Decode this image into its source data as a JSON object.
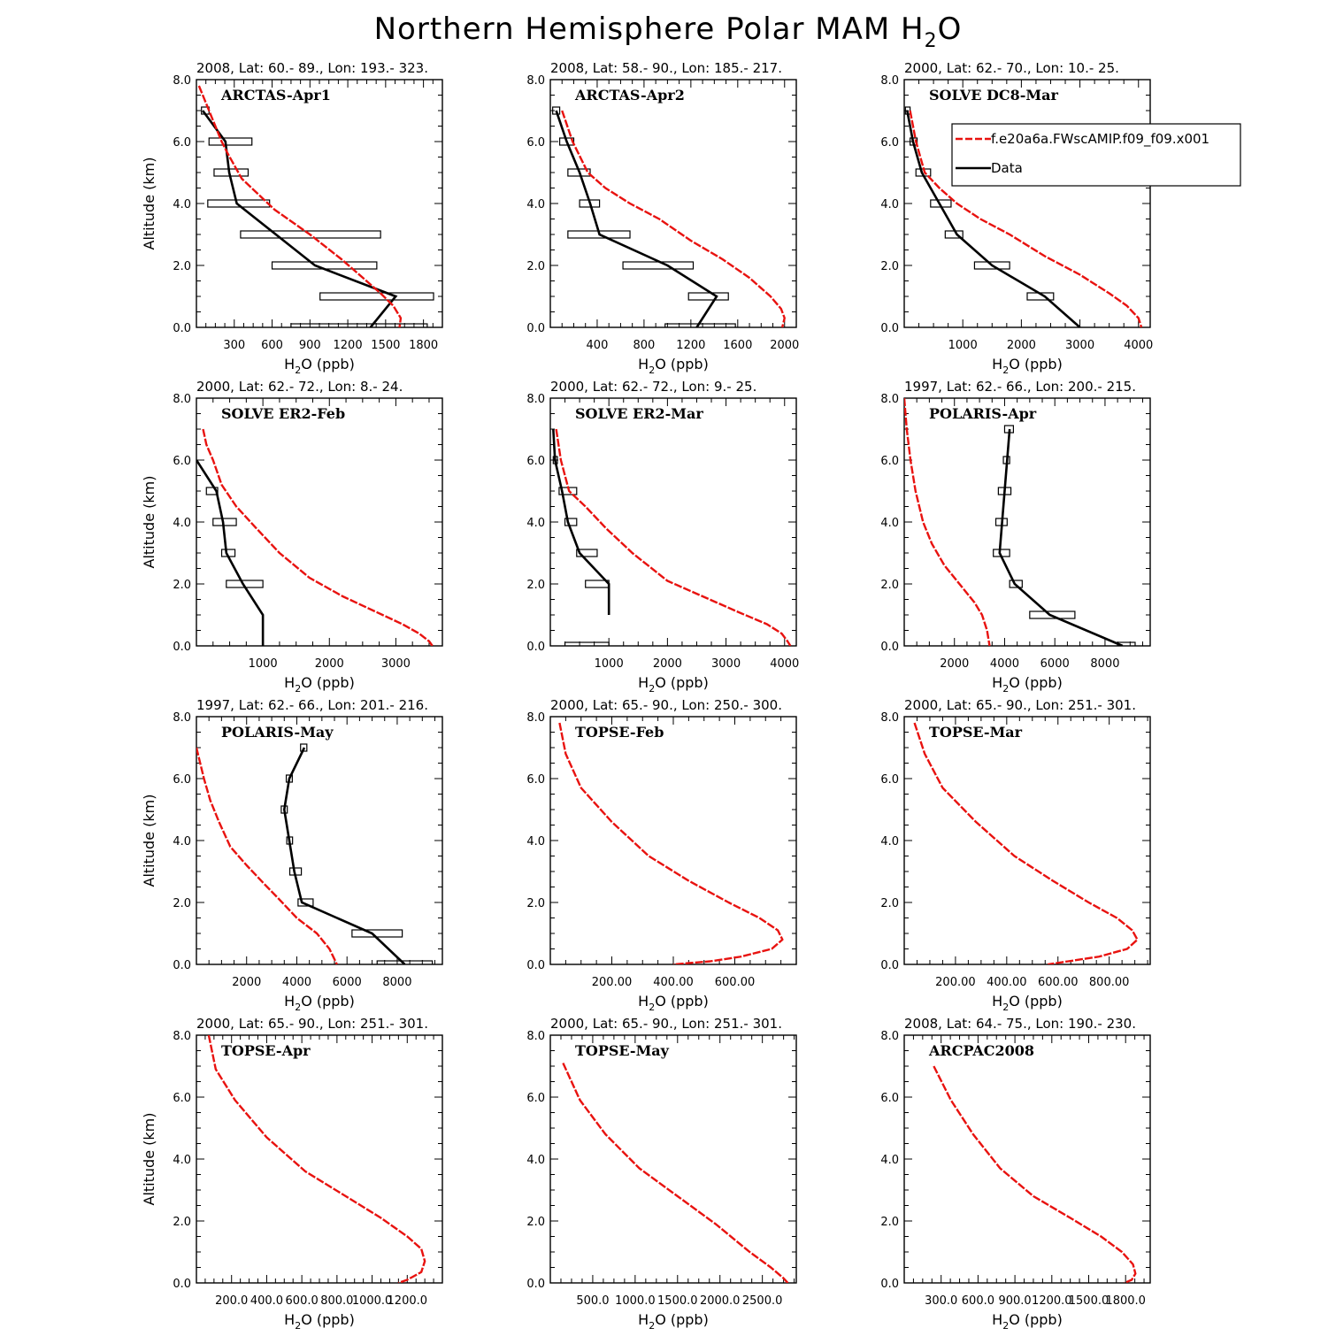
{
  "figure": {
    "title_prefix": "Northern Hemisphere Polar MAM H",
    "title_sub": "2",
    "title_suffix": "O",
    "legend": {
      "model_label": "f.e20a6a.FWscAMIP.f09_f09.x001",
      "data_label": "Data",
      "model_color": "#e8120f",
      "data_color": "#000000"
    },
    "ylabel": "Altitude (km)",
    "xlabel": {
      "prefix": "H",
      "sub": "2",
      "suffix": "O (ppb)"
    }
  },
  "chart_data": [
    {
      "type": "line",
      "panel_title": "ARCTAS-Apr1",
      "header": "2008, Lat:  60.- 89., Lon: 193.- 323.",
      "xlim": [
        0,
        1950
      ],
      "ylim": [
        0,
        8
      ],
      "xticks": [
        300,
        600,
        900,
        1200,
        1500,
        1800
      ],
      "xtick_labels": [
        "300",
        "600",
        "900",
        "1200",
        "1500",
        "1800"
      ],
      "yticks": [
        0,
        2,
        4,
        6,
        8
      ],
      "ytick_labels": [
        "0.0",
        "2.0",
        "4.0",
        "6.0",
        "8.0"
      ],
      "model": {
        "x": [
          20,
          80,
          150,
          200,
          250,
          360,
          620,
          900,
          1150,
          1320,
          1460,
          1560,
          1620,
          1610
        ],
        "y": [
          7.8,
          7.2,
          6.5,
          6.0,
          5.6,
          4.8,
          3.8,
          3.0,
          2.2,
          1.6,
          1.1,
          0.7,
          0.3,
          0.0
        ]
      },
      "data": {
        "x": [
          50,
          230,
          260,
          320,
          940,
          1580,
          1380
        ],
        "y": [
          7,
          6,
          5,
          4,
          2,
          1,
          0
        ],
        "bars": [
          [
            40,
            100
          ],
          [
            100,
            440
          ],
          [
            140,
            410
          ],
          [
            90,
            580
          ],
          [
            350,
            1460
          ],
          [
            600,
            1430
          ],
          [
            980,
            1880
          ],
          [
            750,
            1830
          ]
        ],
        "bar_y": [
          7,
          6,
          5,
          4,
          3,
          2,
          1,
          0
        ]
      }
    },
    {
      "type": "line",
      "panel_title": "ARCTAS-Apr2",
      "header": "2008, Lat:  58.- 90., Lon: 185.- 217.",
      "xlim": [
        0,
        2100
      ],
      "ylim": [
        0,
        8
      ],
      "xticks": [
        400,
        800,
        1200,
        1600,
        2000
      ],
      "xtick_labels": [
        "400",
        "800",
        "1200",
        "1600",
        "2000"
      ],
      "yticks": [
        0,
        2,
        4,
        6,
        8
      ],
      "ytick_labels": [
        "0.0",
        "2.0",
        "4.0",
        "6.0",
        "8.0"
      ],
      "model": {
        "x": [
          100,
          190,
          320,
          470,
          680,
          930,
          1200,
          1470,
          1700,
          1880,
          1970,
          2000,
          1980
        ],
        "y": [
          7.0,
          6.0,
          5.0,
          4.5,
          4.0,
          3.5,
          2.8,
          2.2,
          1.6,
          1.0,
          0.6,
          0.3,
          0.0
        ]
      },
      "data": {
        "x": [
          50,
          140,
          250,
          340,
          420,
          1000,
          1420,
          1250
        ],
        "y": [
          7,
          6,
          5,
          4,
          3,
          2,
          1,
          0
        ],
        "bars": [
          [
            20,
            80
          ],
          [
            80,
            200
          ],
          [
            150,
            340
          ],
          [
            250,
            420
          ],
          [
            150,
            680
          ],
          [
            620,
            1220
          ],
          [
            1180,
            1520
          ],
          [
            980,
            1580
          ]
        ],
        "bar_y": [
          7,
          6,
          5,
          4,
          3,
          2,
          1,
          0
        ]
      }
    },
    {
      "type": "line",
      "panel_title": "SOLVE DC8-Mar",
      "header": "2000, Lat: 62.- 70., Lon: 10.- 25.",
      "xlim": [
        0,
        4200
      ],
      "ylim": [
        0,
        8
      ],
      "xticks": [
        1000,
        2000,
        3000,
        4000
      ],
      "xtick_labels": [
        "1000",
        "2000",
        "3000",
        "4000"
      ],
      "yticks": [
        0,
        2,
        4,
        6,
        8
      ],
      "ytick_labels": [
        "0.0",
        "2.0",
        "4.0",
        "6.0",
        "8.0"
      ],
      "model": {
        "x": [
          100,
          200,
          350,
          600,
          900,
          1300,
          1800,
          2400,
          3000,
          3500,
          3800,
          4000,
          4050
        ],
        "y": [
          7.0,
          6.0,
          5.0,
          4.5,
          4.0,
          3.5,
          3.0,
          2.3,
          1.7,
          1.1,
          0.7,
          0.3,
          0.0
        ]
      },
      "data": {
        "x": [
          50,
          150,
          300,
          600,
          900,
          1500,
          2400,
          3000
        ],
        "y": [
          7,
          6,
          5,
          4,
          3,
          2,
          1,
          0
        ],
        "bars": [
          [
            20,
            100
          ],
          [
            100,
            220
          ],
          [
            200,
            450
          ],
          [
            450,
            800
          ],
          [
            700,
            1000
          ],
          [
            1200,
            1800
          ],
          [
            2100,
            2550
          ]
        ],
        "bar_y": [
          7,
          6,
          5,
          4,
          3,
          2,
          1
        ]
      }
    },
    {
      "type": "line",
      "panel_title": "SOLVE ER2-Feb",
      "header": "2000, Lat: 62.- 72., Lon: 8.- 24.",
      "xlim": [
        0,
        3700
      ],
      "ylim": [
        0,
        8
      ],
      "xticks": [
        1000,
        2000,
        3000
      ],
      "xtick_labels": [
        "1000",
        "2000",
        "3000"
      ],
      "yticks": [
        0,
        2,
        4,
        6,
        8
      ],
      "ytick_labels": [
        "0.0",
        "2.0",
        "4.0",
        "6.0",
        "8.0"
      ],
      "model": {
        "x": [
          100,
          150,
          250,
          380,
          600,
          900,
          1250,
          1700,
          2200,
          2700,
          3100,
          3350,
          3500,
          3550
        ],
        "y": [
          7.0,
          6.5,
          6.0,
          5.2,
          4.5,
          3.8,
          3.0,
          2.2,
          1.6,
          1.1,
          0.7,
          0.4,
          0.15,
          0.0
        ]
      },
      "data": {
        "x": [
          0,
          300,
          400,
          450,
          700,
          1000,
          1000
        ],
        "y": [
          6,
          5,
          4,
          3,
          2,
          1,
          0
        ],
        "bars": [
          [
            150,
            320
          ],
          [
            250,
            600
          ],
          [
            380,
            580
          ],
          [
            450,
            1000
          ]
        ],
        "bar_y": [
          5,
          4,
          3,
          2
        ]
      }
    },
    {
      "type": "line",
      "panel_title": "SOLVE ER2-Mar",
      "header": "2000, Lat: 62.- 72., Lon: 9.- 25.",
      "xlim": [
        0,
        4200
      ],
      "ylim": [
        0,
        8
      ],
      "xticks": [
        1000,
        2000,
        3000,
        4000
      ],
      "xtick_labels": [
        "1000",
        "2000",
        "3000",
        "4000"
      ],
      "yticks": [
        0,
        2,
        4,
        6,
        8
      ],
      "ytick_labels": [
        "0.0",
        "2.0",
        "4.0",
        "6.0",
        "8.0"
      ],
      "model": {
        "x": [
          100,
          180,
          320,
          600,
          950,
          1400,
          2000,
          2600,
          3200,
          3700,
          3950,
          4050,
          4100
        ],
        "y": [
          7.0,
          6.0,
          5.0,
          4.5,
          3.8,
          3.0,
          2.1,
          1.6,
          1.1,
          0.7,
          0.4,
          0.15,
          0.0
        ]
      },
      "data": {
        "x": [
          50,
          80,
          200,
          300,
          500,
          1000,
          1000
        ],
        "y": [
          7,
          6,
          5,
          4,
          3,
          2,
          1
        ],
        "bars": [
          [
            50,
            120
          ],
          [
            150,
            450
          ],
          [
            250,
            450
          ],
          [
            450,
            800
          ],
          [
            600,
            1000
          ],
          [
            250,
            1000
          ]
        ],
        "bar_y": [
          6,
          5,
          4,
          3,
          2,
          0
        ]
      }
    },
    {
      "type": "line",
      "panel_title": "POLARIS-Apr",
      "header": "1997, Lat: 62.- 66., Lon: 200.- 215.",
      "xlim": [
        0,
        9800
      ],
      "ylim": [
        0,
        8
      ],
      "xticks": [
        2000,
        4000,
        6000,
        8000
      ],
      "xtick_labels": [
        "2000",
        "4000",
        "6000",
        "8000"
      ],
      "yticks": [
        0,
        2,
        4,
        6,
        8
      ],
      "ytick_labels": [
        "0.0",
        "2.0",
        "4.0",
        "6.0",
        "8.0"
      ],
      "model": {
        "x": [
          0,
          100,
          250,
          450,
          750,
          1100,
          1600,
          2200,
          2800,
          3100,
          3300,
          3400
        ],
        "y": [
          8.0,
          7.0,
          6.0,
          5.0,
          4.0,
          3.3,
          2.6,
          2.0,
          1.4,
          1.0,
          0.5,
          0.0
        ]
      },
      "data": {
        "x": [
          4200,
          4100,
          4000,
          3900,
          3800,
          4400,
          5800,
          8700
        ],
        "y": [
          7,
          6,
          5,
          4,
          3,
          2,
          1,
          0
        ],
        "bars": [
          [
            4000,
            4350
          ],
          [
            3950,
            4200
          ],
          [
            3750,
            4250
          ],
          [
            3650,
            4100
          ],
          [
            3550,
            4200
          ],
          [
            4200,
            4700
          ],
          [
            5000,
            6800
          ],
          [
            8500,
            9200
          ]
        ],
        "bar_y": [
          7,
          6,
          5,
          4,
          3,
          2,
          1,
          0
        ]
      }
    },
    {
      "type": "line",
      "panel_title": "POLARIS-May",
      "header": "1997, Lat: 62.- 66., Lon: 201.- 216.",
      "xlim": [
        0,
        9800
      ],
      "ylim": [
        0,
        8
      ],
      "xticks": [
        2000,
        4000,
        6000,
        8000
      ],
      "xtick_labels": [
        "2000",
        "4000",
        "6000",
        "8000"
      ],
      "yticks": [
        0,
        2,
        4,
        6,
        8
      ],
      "ytick_labels": [
        "0.0",
        "2.0",
        "4.0",
        "6.0",
        "8.0"
      ],
      "model": {
        "x": [
          0,
          150,
          300,
          550,
          900,
          1350,
          2000,
          2700,
          3300,
          4000,
          4800,
          5300,
          5600
        ],
        "y": [
          7.0,
          6.5,
          6.0,
          5.3,
          4.6,
          3.8,
          3.2,
          2.6,
          2.1,
          1.5,
          1.0,
          0.5,
          0.0
        ]
      },
      "data": {
        "x": [
          4300,
          3700,
          3500,
          3700,
          3900,
          4200,
          7000,
          8300
        ],
        "y": [
          7,
          6,
          5,
          4,
          3,
          2,
          1,
          0
        ],
        "bars": [
          [
            4150,
            4400
          ],
          [
            3580,
            3820
          ],
          [
            3380,
            3620
          ],
          [
            3600,
            3830
          ],
          [
            3720,
            4180
          ],
          [
            4050,
            4650
          ],
          [
            6200,
            8200
          ],
          [
            7200,
            9400
          ]
        ],
        "bar_y": [
          7,
          6,
          5,
          4,
          3,
          2,
          1,
          0
        ]
      }
    },
    {
      "type": "line",
      "panel_title": "TOPSE-Feb",
      "header": "2000, Lat: 65.- 90., Lon: 250.- 300.",
      "xlim": [
        0,
        800
      ],
      "ylim": [
        0,
        8
      ],
      "xticks": [
        200,
        400,
        600
      ],
      "xtick_labels": [
        "200.00",
        "400.00",
        "600.00"
      ],
      "yticks": [
        0,
        2,
        4,
        6,
        8
      ],
      "ytick_labels": [
        "0.0",
        "2.0",
        "4.0",
        "6.0",
        "8.0"
      ],
      "model": {
        "x": [
          30,
          50,
          100,
          200,
          320,
          450,
          580,
          680,
          740,
          755,
          720,
          620,
          520,
          400
        ],
        "y": [
          7.8,
          6.8,
          5.7,
          4.6,
          3.5,
          2.7,
          2.0,
          1.5,
          1.1,
          0.8,
          0.5,
          0.25,
          0.1,
          0.0
        ]
      },
      "data": null
    },
    {
      "type": "line",
      "panel_title": "TOPSE-Mar",
      "header": "2000, Lat: 65.- 90., Lon: 251.- 301.",
      "xlim": [
        0,
        960
      ],
      "ylim": [
        0,
        8
      ],
      "xticks": [
        200,
        400,
        600,
        800
      ],
      "xtick_labels": [
        "200.00",
        "400.00",
        "600.00",
        "800.00"
      ],
      "yticks": [
        0,
        2,
        4,
        6,
        8
      ],
      "ytick_labels": [
        "0.0",
        "2.0",
        "4.0",
        "6.0",
        "8.0"
      ],
      "model": {
        "x": [
          40,
          80,
          150,
          280,
          430,
          580,
          720,
          830,
          890,
          910,
          870,
          760,
          640,
          560
        ],
        "y": [
          7.8,
          6.8,
          5.7,
          4.6,
          3.5,
          2.7,
          2.0,
          1.5,
          1.1,
          0.8,
          0.5,
          0.25,
          0.1,
          0.0
        ]
      },
      "data": null
    },
    {
      "type": "line",
      "panel_title": "TOPSE-Apr",
      "header": "2000, Lat: 65.- 90., Lon: 251.- 301.",
      "xlim": [
        0,
        1400
      ],
      "ylim": [
        0,
        8
      ],
      "xticks": [
        200,
        400,
        600,
        800,
        1000,
        1200
      ],
      "xtick_labels": [
        "200.0",
        "400.0",
        "600.0",
        "800.0",
        "1000.0",
        "1200.0"
      ],
      "yticks": [
        0,
        2,
        4,
        6,
        8
      ],
      "ytick_labels": [
        "0.0",
        "2.0",
        "4.0",
        "6.0",
        "8.0"
      ],
      "model": {
        "x": [
          70,
          110,
          220,
          400,
          620,
          850,
          1050,
          1200,
          1280,
          1300,
          1280,
          1200,
          1150
        ],
        "y": [
          8.0,
          6.9,
          5.9,
          4.7,
          3.6,
          2.8,
          2.1,
          1.5,
          1.1,
          0.7,
          0.35,
          0.1,
          0.0
        ]
      },
      "data": null
    },
    {
      "type": "line",
      "panel_title": "TOPSE-May",
      "header": "2000, Lat: 65.- 90., Lon: 251.- 301.",
      "xlim": [
        0,
        2900
      ],
      "ylim": [
        0,
        8
      ],
      "xticks": [
        500,
        1000,
        1500,
        2000,
        2500
      ],
      "xtick_labels": [
        "500.0",
        "1000.0",
        "1500.0",
        "2000.0",
        "2500.0"
      ],
      "yticks": [
        0,
        2,
        4,
        6,
        8
      ],
      "ytick_labels": [
        "0.0",
        "2.0",
        "4.0",
        "6.0",
        "8.0"
      ],
      "model": {
        "x": [
          150,
          350,
          650,
          1050,
          1500,
          1950,
          2350,
          2600,
          2750,
          2800
        ],
        "y": [
          7.1,
          5.9,
          4.8,
          3.7,
          2.8,
          1.9,
          1.0,
          0.5,
          0.15,
          0.0
        ]
      },
      "data": null
    },
    {
      "type": "line",
      "panel_title": "ARCPAC2008",
      "header": "2008, Lat: 64.- 75., Lon: 190.- 230.",
      "xlim": [
        0,
        2000
      ],
      "ylim": [
        0,
        8
      ],
      "xticks": [
        300,
        600,
        900,
        1200,
        1500,
        1800
      ],
      "xtick_labels": [
        "300.0",
        "600.0",
        "900.0",
        "1200.0",
        "1500.0",
        "1800.0"
      ],
      "yticks": [
        0,
        2,
        4,
        6,
        8
      ],
      "ytick_labels": [
        "0.0",
        "2.0",
        "4.0",
        "6.0",
        "8.0"
      ],
      "model": {
        "x": [
          240,
          380,
          560,
          780,
          1050,
          1350,
          1600,
          1770,
          1860,
          1880,
          1850,
          1790
        ],
        "y": [
          7.0,
          5.9,
          4.8,
          3.7,
          2.8,
          2.1,
          1.5,
          1.0,
          0.6,
          0.3,
          0.1,
          0.0
        ]
      },
      "data": null
    }
  ]
}
